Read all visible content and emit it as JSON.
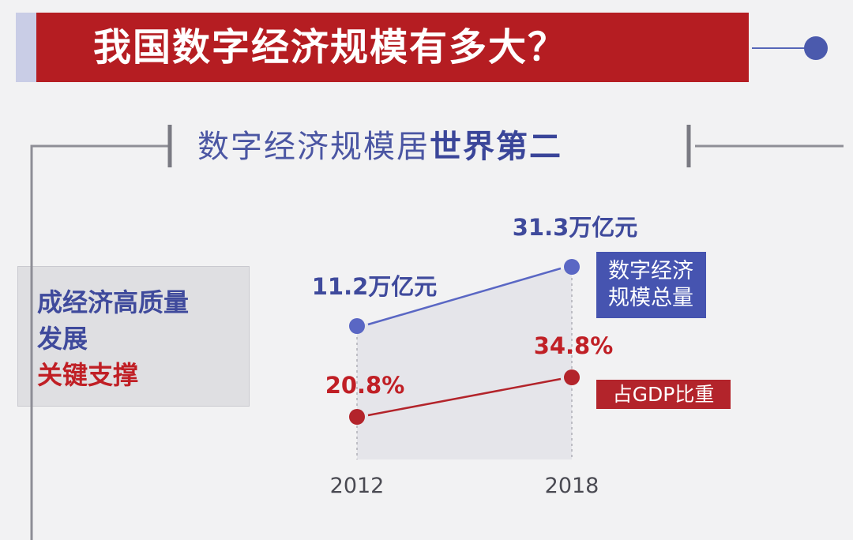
{
  "header": {
    "title": "我国数字经济规模有多大？"
  },
  "section": {
    "subtitle_normal": "数字经济规模居",
    "subtitle_bold": "世界第二"
  },
  "side_box": {
    "line1": "成经济高质量",
    "line2": "发展",
    "line3": "关键支撑"
  },
  "colors": {
    "title_red": "#b51d22",
    "series_blue": "#5a67c4",
    "series_red": "#b3242b",
    "label_blue": "#3f4a9c",
    "label_red": "#c01f25"
  },
  "chart_data": {
    "type": "line",
    "categories": [
      "2012",
      "2018"
    ],
    "series": [
      {
        "name": "数字经济规模总量",
        "values": [
          11.2,
          31.3
        ],
        "unit": "万亿元",
        "data_labels": [
          "11.2万亿元",
          "31.3万亿元"
        ]
      },
      {
        "name": "占GDP比重",
        "values": [
          20.8,
          34.8
        ],
        "unit": "%",
        "data_labels": [
          "20.8%",
          "34.8%"
        ]
      }
    ],
    "legend_labels": [
      "数字经济\n规模总量",
      "占GDP比重"
    ],
    "grid": false
  }
}
